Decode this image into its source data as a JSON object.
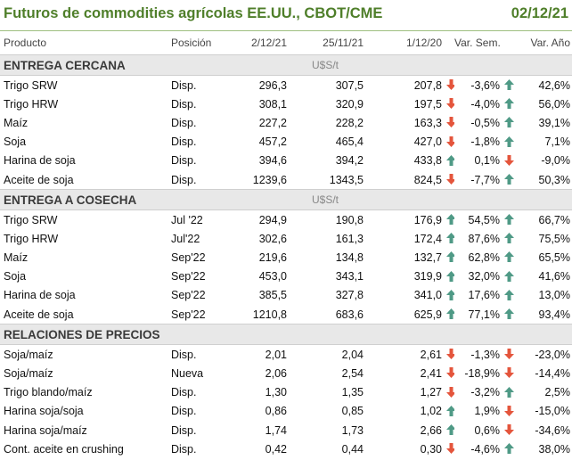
{
  "title": "Futuros de commodities agrícolas EE.UU., CBOT/CME",
  "date": "02/12/21",
  "columns": [
    "Producto",
    "Posición",
    "2/12/21",
    "25/11/21",
    "1/12/20",
    "Var. Sem.",
    "Var. Año"
  ],
  "colors": {
    "title": "#4f7f2a",
    "up": "#4f9a86",
    "down": "#e4553c",
    "section_bg": "#e8e8e8"
  },
  "icons": {
    "up": "arrow-up-icon",
    "down": "arrow-down-icon"
  },
  "sections": [
    {
      "name": "ENTREGA CERCANA",
      "unit": "U$S/t",
      "rows": [
        {
          "product": "Trigo SRW",
          "position": "Disp.",
          "v1": "296,3",
          "v2": "307,5",
          "v3": "207,8",
          "a1": "down",
          "sem": "-3,6%",
          "a2": "up",
          "ano": "42,6%"
        },
        {
          "product": "Trigo HRW",
          "position": "Disp.",
          "v1": "308,1",
          "v2": "320,9",
          "v3": "197,5",
          "a1": "down",
          "sem": "-4,0%",
          "a2": "up",
          "ano": "56,0%"
        },
        {
          "product": "Maíz",
          "position": "Disp.",
          "v1": "227,2",
          "v2": "228,2",
          "v3": "163,3",
          "a1": "down",
          "sem": "-0,5%",
          "a2": "up",
          "ano": "39,1%"
        },
        {
          "product": "Soja",
          "position": "Disp.",
          "v1": "457,2",
          "v2": "465,4",
          "v3": "427,0",
          "a1": "down",
          "sem": "-1,8%",
          "a2": "up",
          "ano": "7,1%"
        },
        {
          "product": "Harina de soja",
          "position": "Disp.",
          "v1": "394,6",
          "v2": "394,2",
          "v3": "433,8",
          "a1": "up",
          "sem": "0,1%",
          "a2": "down",
          "ano": "-9,0%"
        },
        {
          "product": "Aceite de soja",
          "position": "Disp.",
          "v1": "1239,6",
          "v2": "1343,5",
          "v3": "824,5",
          "a1": "down",
          "sem": "-7,7%",
          "a2": "up",
          "ano": "50,3%"
        }
      ]
    },
    {
      "name": "ENTREGA A COSECHA",
      "unit": "U$S/t",
      "rows": [
        {
          "product": "Trigo SRW",
          "position": "Jul '22",
          "v1": "294,9",
          "v2": "190,8",
          "v3": "176,9",
          "a1": "up",
          "sem": "54,5%",
          "a2": "up",
          "ano": "66,7%"
        },
        {
          "product": "Trigo HRW",
          "position": "Jul'22",
          "v1": "302,6",
          "v2": "161,3",
          "v3": "172,4",
          "a1": "up",
          "sem": "87,6%",
          "a2": "up",
          "ano": "75,5%"
        },
        {
          "product": "Maíz",
          "position": "Sep'22",
          "v1": "219,6",
          "v2": "134,8",
          "v3": "132,7",
          "a1": "up",
          "sem": "62,8%",
          "a2": "up",
          "ano": "65,5%"
        },
        {
          "product": "Soja",
          "position": "Sep'22",
          "v1": "453,0",
          "v2": "343,1",
          "v3": "319,9",
          "a1": "up",
          "sem": "32,0%",
          "a2": "up",
          "ano": "41,6%"
        },
        {
          "product": "Harina de soja",
          "position": "Sep'22",
          "v1": "385,5",
          "v2": "327,8",
          "v3": "341,0",
          "a1": "up",
          "sem": "17,6%",
          "a2": "up",
          "ano": "13,0%"
        },
        {
          "product": "Aceite de soja",
          "position": "Sep'22",
          "v1": "1210,8",
          "v2": "683,6",
          "v3": "625,9",
          "a1": "up",
          "sem": "77,1%",
          "a2": "up",
          "ano": "93,4%"
        }
      ]
    },
    {
      "name": "RELACIONES DE PRECIOS",
      "unit": "",
      "rows": [
        {
          "product": "Soja/maíz",
          "position": "Disp.",
          "v1": "2,01",
          "v2": "2,04",
          "v3": "2,61",
          "a1": "down",
          "sem": "-1,3%",
          "a2": "down",
          "ano": "-23,0%"
        },
        {
          "product": "Soja/maíz",
          "position": "Nueva",
          "v1": "2,06",
          "v2": "2,54",
          "v3": "2,41",
          "a1": "down",
          "sem": "-18,9%",
          "a2": "down",
          "ano": "-14,4%"
        },
        {
          "product": "Trigo blando/maíz",
          "position": "Disp.",
          "v1": "1,30",
          "v2": "1,35",
          "v3": "1,27",
          "a1": "down",
          "sem": "-3,2%",
          "a2": "up",
          "ano": "2,5%"
        },
        {
          "product": "Harina soja/soja",
          "position": "Disp.",
          "v1": "0,86",
          "v2": "0,85",
          "v3": "1,02",
          "a1": "up",
          "sem": "1,9%",
          "a2": "down",
          "ano": "-15,0%"
        },
        {
          "product": "Harina soja/maíz",
          "position": "Disp.",
          "v1": "1,74",
          "v2": "1,73",
          "v3": "2,66",
          "a1": "up",
          "sem": "0,6%",
          "a2": "down",
          "ano": "-34,6%"
        },
        {
          "product": "Cont. aceite en crushing",
          "position": "Disp.",
          "v1": "0,42",
          "v2": "0,44",
          "v3": "0,30",
          "a1": "down",
          "sem": "-4,6%",
          "a2": "up",
          "ano": "38,0%"
        }
      ]
    }
  ]
}
